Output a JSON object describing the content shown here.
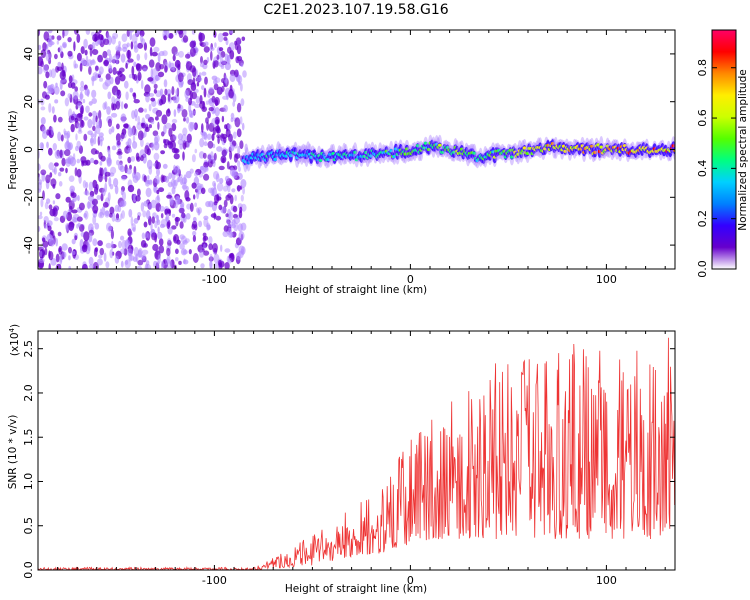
{
  "title": "C2E1.2023.107.19.58.G16",
  "colormap": [
    "#ffffff",
    "#6600cc",
    "#3300ff",
    "#0080ff",
    "#00d0ff",
    "#00ff80",
    "#55ff00",
    "#ccff00",
    "#ffee00",
    "#ff8800",
    "#ff0000",
    "#ff0066"
  ],
  "chart_data": [
    {
      "type": "heatmap",
      "title": "C2E1.2023.107.19.58.G16",
      "xlabel": "Height of straight line (km)",
      "ylabel": "Frequency (Hz)",
      "xlim": [
        -190,
        135
      ],
      "ylim": [
        -50,
        50
      ],
      "xticks": [
        -100,
        0,
        100
      ],
      "xtick_labels": [
        "-100",
        "0",
        "100"
      ],
      "yticks": [
        -40,
        -20,
        0,
        20,
        40
      ],
      "ytick_labels": [
        "-40",
        "-20",
        "0",
        "20",
        "40"
      ],
      "colorbar": {
        "label": "Normalized spectral amplitude",
        "ticks": [
          0.0,
          0.2,
          0.4,
          0.6,
          0.8
        ],
        "tick_labels": [
          "0.0",
          "0.2",
          "0.4",
          "0.6",
          "0.8"
        ],
        "range": [
          0.0,
          0.95
        ]
      },
      "noise_region_x": [
        -190,
        -85
      ],
      "signal_line": {
        "x": [
          -85,
          -75,
          -60,
          -40,
          -20,
          -5,
          10,
          20,
          35,
          50,
          70,
          90,
          110,
          135
        ],
        "frequency": [
          -4,
          -3,
          -2,
          -3,
          -2,
          -1,
          1,
          0,
          -3,
          -2,
          1,
          0,
          0,
          0
        ],
        "amplitude": [
          0.35,
          0.38,
          0.4,
          0.42,
          0.45,
          0.5,
          0.55,
          0.58,
          0.5,
          0.6,
          0.75,
          0.8,
          0.85,
          0.85
        ]
      }
    },
    {
      "type": "line",
      "xlabel": "Height of straight line (km)",
      "ylabel": "SNR (10 * v/v)",
      "scale_label_prefix": "(x10",
      "scale_label_exp": "4",
      "scale_label_suffix": ")",
      "xlim": [
        -190,
        135
      ],
      "ylim": [
        0,
        2.7
      ],
      "xticks": [
        -100,
        0,
        100
      ],
      "xtick_labels": [
        "-100",
        "0",
        "100"
      ],
      "yticks": [
        0.0,
        0.5,
        1.0,
        1.5,
        2.0,
        2.5
      ],
      "ytick_labels": [
        "0.0",
        "0.5",
        "1.0",
        "1.5",
        "2.0",
        "2.5"
      ],
      "line_color": "#ee3333",
      "envelope": {
        "x": [
          -190,
          -80,
          -70,
          -50,
          -30,
          -10,
          0,
          20,
          40,
          60,
          80,
          100,
          120,
          135
        ],
        "low": [
          0.0,
          0.0,
          0.02,
          0.05,
          0.15,
          0.2,
          0.3,
          0.35,
          0.35,
          0.35,
          0.35,
          0.35,
          0.35,
          0.35
        ],
        "high": [
          0.03,
          0.03,
          0.15,
          0.4,
          0.7,
          1.1,
          1.5,
          1.8,
          2.2,
          2.4,
          2.5,
          2.5,
          2.5,
          2.5
        ]
      }
    }
  ]
}
